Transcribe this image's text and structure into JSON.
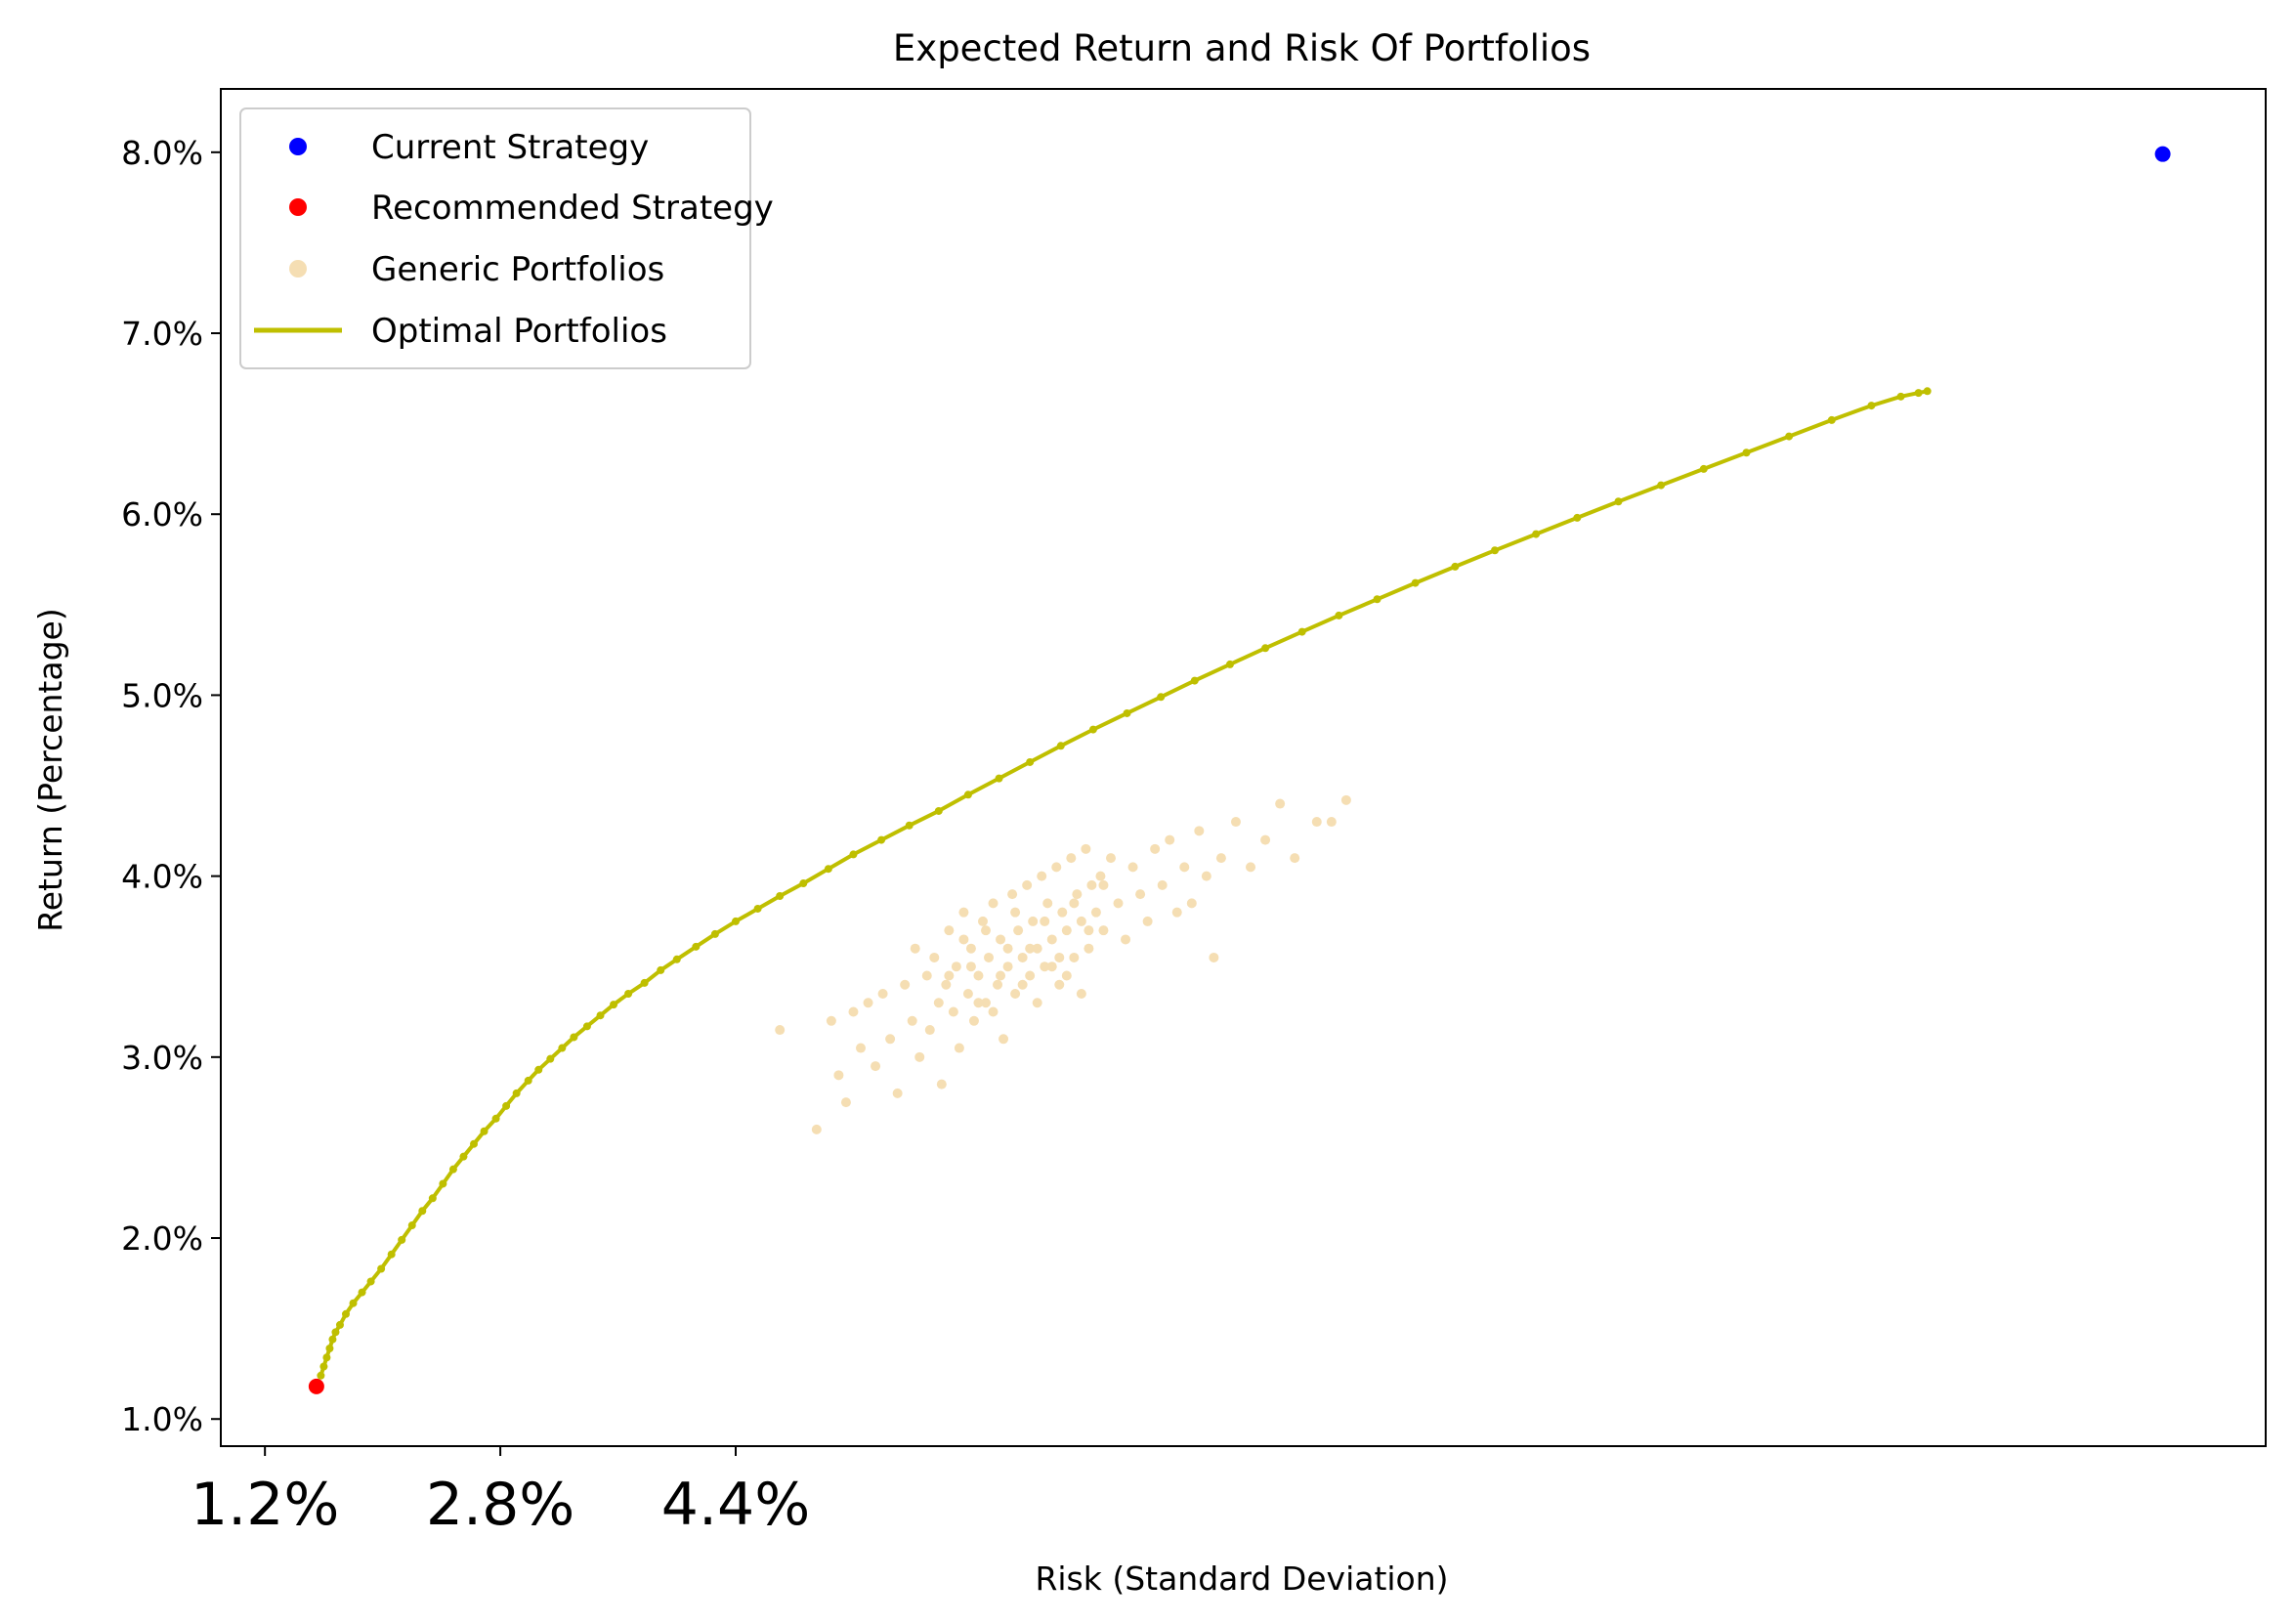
{
  "chart_data": {
    "type": "scatter",
    "title": "Expected Return and Risk Of Portfolios",
    "xlabel": "Risk (Standard Deviation)",
    "ylabel": "Return (Percentage)",
    "xlim": [
      0.9,
      14.8
    ],
    "ylim": [
      0.85,
      8.35
    ],
    "x_ticks": [
      1.2,
      2.8,
      4.4
    ],
    "x_tick_labels": [
      "1.2%",
      "2.8%",
      "4.4%"
    ],
    "y_ticks": [
      1.0,
      2.0,
      3.0,
      4.0,
      5.0,
      6.0,
      7.0,
      8.0
    ],
    "y_tick_labels": [
      "1.0%",
      "2.0%",
      "3.0%",
      "4.0%",
      "5.0%",
      "6.0%",
      "7.0%",
      "8.0%"
    ],
    "grid": false,
    "legend_position": "top-left",
    "legend": [
      {
        "label": "Current Strategy",
        "kind": "marker",
        "color": "#0000ff"
      },
      {
        "label": "Recommended Strategy",
        "kind": "marker",
        "color": "#ff0000"
      },
      {
        "label": "Generic Portfolios",
        "kind": "marker",
        "color": "#f5deb3"
      },
      {
        "label": "Optimal Portfolios",
        "kind": "line",
        "color": "#bfbf00"
      }
    ],
    "series": [
      {
        "name": "Current Strategy",
        "color": "#0000ff",
        "points": [
          [
            14.1,
            7.99
          ]
        ]
      },
      {
        "name": "Recommended Strategy",
        "color": "#ff0000",
        "points": [
          [
            1.55,
            1.18
          ]
        ]
      },
      {
        "name": "Optimal Portfolios",
        "color": "#bfbf00",
        "points": [
          [
            1.58,
            1.24
          ],
          [
            1.6,
            1.29
          ],
          [
            1.62,
            1.34
          ],
          [
            1.64,
            1.39
          ],
          [
            1.66,
            1.44
          ],
          [
            1.68,
            1.48
          ],
          [
            1.71,
            1.52
          ],
          [
            1.75,
            1.58
          ],
          [
            1.8,
            1.64
          ],
          [
            1.86,
            1.7
          ],
          [
            1.92,
            1.76
          ],
          [
            1.99,
            1.83
          ],
          [
            2.06,
            1.91
          ],
          [
            2.13,
            1.99
          ],
          [
            2.2,
            2.07
          ],
          [
            2.27,
            2.15
          ],
          [
            2.34,
            2.22
          ],
          [
            2.41,
            2.3
          ],
          [
            2.48,
            2.38
          ],
          [
            2.55,
            2.45
          ],
          [
            2.62,
            2.52
          ],
          [
            2.69,
            2.59
          ],
          [
            2.77,
            2.66
          ],
          [
            2.84,
            2.73
          ],
          [
            2.91,
            2.8
          ],
          [
            2.99,
            2.87
          ],
          [
            3.06,
            2.93
          ],
          [
            3.14,
            2.99
          ],
          [
            3.22,
            3.05
          ],
          [
            3.3,
            3.11
          ],
          [
            3.39,
            3.17
          ],
          [
            3.48,
            3.23
          ],
          [
            3.57,
            3.29
          ],
          [
            3.67,
            3.35
          ],
          [
            3.78,
            3.41
          ],
          [
            3.89,
            3.48
          ],
          [
            4.0,
            3.54
          ],
          [
            4.13,
            3.61
          ],
          [
            4.26,
            3.68
          ],
          [
            4.4,
            3.75
          ],
          [
            4.55,
            3.82
          ],
          [
            4.7,
            3.89
          ],
          [
            4.86,
            3.96
          ],
          [
            5.03,
            4.04
          ],
          [
            5.2,
            4.12
          ],
          [
            5.39,
            4.2
          ],
          [
            5.58,
            4.28
          ],
          [
            5.78,
            4.36
          ],
          [
            5.98,
            4.45
          ],
          [
            6.19,
            4.54
          ],
          [
            6.4,
            4.63
          ],
          [
            6.61,
            4.72
          ],
          [
            6.83,
            4.81
          ],
          [
            7.06,
            4.9
          ],
          [
            7.29,
            4.99
          ],
          [
            7.52,
            5.08
          ],
          [
            7.76,
            5.17
          ],
          [
            8.0,
            5.26
          ],
          [
            8.25,
            5.35
          ],
          [
            8.5,
            5.44
          ],
          [
            8.76,
            5.53
          ],
          [
            9.02,
            5.62
          ],
          [
            9.29,
            5.71
          ],
          [
            9.56,
            5.8
          ],
          [
            9.84,
            5.89
          ],
          [
            10.12,
            5.98
          ],
          [
            10.4,
            6.07
          ],
          [
            10.69,
            6.16
          ],
          [
            10.98,
            6.25
          ],
          [
            11.27,
            6.34
          ],
          [
            11.56,
            6.43
          ],
          [
            11.85,
            6.52
          ],
          [
            12.12,
            6.6
          ],
          [
            12.32,
            6.65
          ],
          [
            12.44,
            6.67
          ],
          [
            12.5,
            6.68
          ]
        ]
      },
      {
        "name": "Generic Portfolios",
        "color": "#f5deb3",
        "points": [
          [
            4.7,
            3.15
          ],
          [
            4.95,
            2.6
          ],
          [
            5.05,
            3.2
          ],
          [
            5.1,
            2.9
          ],
          [
            5.15,
            2.75
          ],
          [
            5.2,
            3.25
          ],
          [
            5.25,
            3.05
          ],
          [
            5.3,
            3.3
          ],
          [
            5.35,
            2.95
          ],
          [
            5.4,
            3.35
          ],
          [
            5.45,
            3.1
          ],
          [
            5.5,
            2.8
          ],
          [
            5.55,
            3.4
          ],
          [
            5.6,
            3.2
          ],
          [
            5.62,
            3.6
          ],
          [
            5.65,
            3.0
          ],
          [
            5.7,
            3.45
          ],
          [
            5.72,
            3.15
          ],
          [
            5.75,
            3.55
          ],
          [
            5.78,
            3.3
          ],
          [
            5.8,
            2.85
          ],
          [
            5.83,
            3.4
          ],
          [
            5.85,
            3.7
          ],
          [
            5.88,
            3.25
          ],
          [
            5.9,
            3.5
          ],
          [
            5.92,
            3.05
          ],
          [
            5.95,
            3.8
          ],
          [
            5.98,
            3.35
          ],
          [
            6.0,
            3.6
          ],
          [
            6.02,
            3.2
          ],
          [
            6.05,
            3.45
          ],
          [
            6.08,
            3.75
          ],
          [
            6.1,
            3.3
          ],
          [
            6.12,
            3.55
          ],
          [
            6.15,
            3.85
          ],
          [
            6.18,
            3.4
          ],
          [
            6.2,
            3.65
          ],
          [
            6.22,
            3.1
          ],
          [
            6.25,
            3.5
          ],
          [
            6.28,
            3.9
          ],
          [
            6.3,
            3.35
          ],
          [
            6.32,
            3.7
          ],
          [
            6.35,
            3.55
          ],
          [
            6.38,
            3.95
          ],
          [
            6.4,
            3.45
          ],
          [
            6.42,
            3.75
          ],
          [
            6.45,
            3.6
          ],
          [
            6.48,
            4.0
          ],
          [
            6.5,
            3.5
          ],
          [
            6.52,
            3.85
          ],
          [
            6.55,
            3.65
          ],
          [
            6.58,
            4.05
          ],
          [
            6.6,
            3.4
          ],
          [
            6.62,
            3.8
          ],
          [
            6.65,
            3.7
          ],
          [
            6.68,
            4.1
          ],
          [
            6.7,
            3.55
          ],
          [
            6.72,
            3.9
          ],
          [
            6.75,
            3.75
          ],
          [
            6.78,
            4.15
          ],
          [
            6.8,
            3.6
          ],
          [
            6.82,
            3.95
          ],
          [
            6.85,
            3.8
          ],
          [
            6.88,
            4.0
          ],
          [
            6.9,
            3.7
          ],
          [
            6.95,
            4.1
          ],
          [
            7.0,
            3.85
          ],
          [
            7.05,
            3.65
          ],
          [
            7.1,
            4.05
          ],
          [
            7.15,
            3.9
          ],
          [
            7.2,
            3.75
          ],
          [
            7.25,
            4.15
          ],
          [
            7.3,
            3.95
          ],
          [
            7.35,
            4.2
          ],
          [
            7.4,
            3.8
          ],
          [
            7.45,
            4.05
          ],
          [
            7.5,
            3.85
          ],
          [
            7.55,
            4.25
          ],
          [
            7.6,
            4.0
          ],
          [
            7.65,
            3.55
          ],
          [
            7.7,
            4.1
          ],
          [
            7.8,
            4.3
          ],
          [
            7.9,
            4.05
          ],
          [
            8.0,
            4.2
          ],
          [
            8.1,
            4.4
          ],
          [
            8.2,
            4.1
          ],
          [
            8.35,
            4.3
          ],
          [
            8.45,
            4.3
          ],
          [
            8.55,
            4.42
          ],
          [
            6.05,
            3.3
          ],
          [
            6.15,
            3.25
          ],
          [
            6.25,
            3.6
          ],
          [
            6.35,
            3.4
          ],
          [
            6.45,
            3.3
          ],
          [
            6.55,
            3.5
          ],
          [
            6.65,
            3.45
          ],
          [
            6.75,
            3.35
          ],
          [
            5.95,
            3.65
          ],
          [
            6.1,
            3.7
          ],
          [
            6.3,
            3.8
          ],
          [
            6.5,
            3.75
          ],
          [
            6.7,
            3.85
          ],
          [
            6.9,
            3.95
          ],
          [
            5.85,
            3.45
          ],
          [
            6.0,
            3.5
          ],
          [
            6.2,
            3.45
          ],
          [
            6.4,
            3.6
          ],
          [
            6.6,
            3.55
          ],
          [
            6.8,
            3.7
          ]
        ]
      }
    ]
  }
}
